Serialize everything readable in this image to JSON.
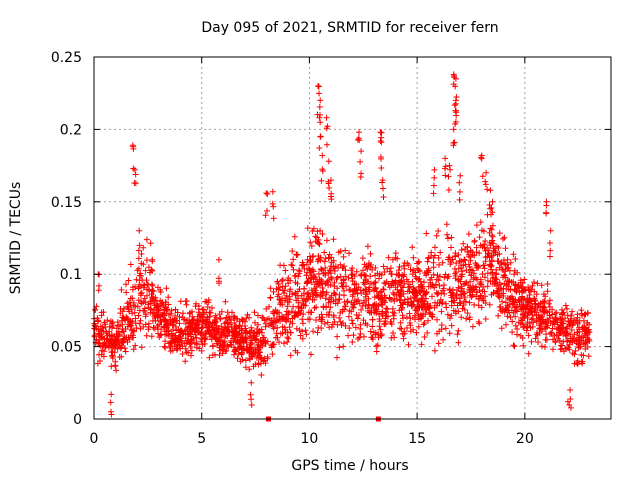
{
  "chart_data": {
    "type": "scatter",
    "title": "Day 095 of 2021, SRMTID for receiver fern",
    "xlabel": "GPS time / hours",
    "ylabel": "SRMTID / TECUs",
    "xlim": [
      0,
      24
    ],
    "ylim": [
      0,
      0.25
    ],
    "xticks": [
      0,
      5,
      10,
      15,
      20
    ],
    "yticks": [
      0,
      0.05,
      0.1,
      0.15,
      0.2,
      0.25
    ],
    "xtick_labels": [
      "0",
      "5",
      "10",
      "15",
      "20"
    ],
    "ytick_labels": [
      "0",
      "0.05",
      "0.1",
      "0.15",
      "0.2",
      "0.25"
    ],
    "grid": true,
    "marker": "plus",
    "color": "#ff0000",
    "x_range_of_data": [
      0,
      23
    ],
    "baseline_markers": [
      {
        "x": 8.1,
        "y": 0
      },
      {
        "x": 13.2,
        "y": 0
      }
    ],
    "envelope": {
      "hours": [
        0,
        0.5,
        1,
        1.5,
        2,
        2.5,
        3,
        4,
        5,
        6,
        7,
        7.8,
        8.5,
        9,
        10,
        10.5,
        11,
        12,
        13,
        14,
        15,
        16,
        17,
        18,
        18.5,
        19,
        20,
        21,
        22,
        23
      ],
      "median": [
        0.06,
        0.055,
        0.05,
        0.07,
        0.08,
        0.09,
        0.07,
        0.06,
        0.065,
        0.06,
        0.055,
        0.05,
        0.075,
        0.08,
        0.09,
        0.1,
        0.085,
        0.08,
        0.08,
        0.085,
        0.085,
        0.09,
        0.09,
        0.1,
        0.11,
        0.09,
        0.075,
        0.07,
        0.06,
        0.055
      ],
      "spread": [
        0.02,
        0.02,
        0.02,
        0.03,
        0.035,
        0.035,
        0.025,
        0.02,
        0.02,
        0.02,
        0.02,
        0.02,
        0.03,
        0.035,
        0.04,
        0.045,
        0.04,
        0.035,
        0.035,
        0.035,
        0.035,
        0.04,
        0.04,
        0.04,
        0.04,
        0.035,
        0.03,
        0.025,
        0.02,
        0.02
      ]
    },
    "peaks": [
      {
        "x": 0.2,
        "y": 0.1
      },
      {
        "x": 1.8,
        "y": 0.189
      },
      {
        "x": 1.9,
        "y": 0.172
      },
      {
        "x": 2.1,
        "y": 0.13
      },
      {
        "x": 2.7,
        "y": 0.11
      },
      {
        "x": 5.8,
        "y": 0.11
      },
      {
        "x": 8.0,
        "y": 0.156
      },
      {
        "x": 8.3,
        "y": 0.157
      },
      {
        "x": 10.4,
        "y": 0.23
      },
      {
        "x": 10.5,
        "y": 0.22
      },
      {
        "x": 10.5,
        "y": 0.205
      },
      {
        "x": 10.6,
        "y": 0.182
      },
      {
        "x": 10.8,
        "y": 0.208
      },
      {
        "x": 10.9,
        "y": 0.178
      },
      {
        "x": 11.0,
        "y": 0.165
      },
      {
        "x": 12.3,
        "y": 0.198
      },
      {
        "x": 12.4,
        "y": 0.185
      },
      {
        "x": 13.3,
        "y": 0.198
      },
      {
        "x": 13.3,
        "y": 0.192
      },
      {
        "x": 13.4,
        "y": 0.165
      },
      {
        "x": 15.8,
        "y": 0.172
      },
      {
        "x": 16.3,
        "y": 0.18
      },
      {
        "x": 16.7,
        "y": 0.238
      },
      {
        "x": 16.8,
        "y": 0.235
      },
      {
        "x": 16.8,
        "y": 0.22
      },
      {
        "x": 16.8,
        "y": 0.213
      },
      {
        "x": 16.7,
        "y": 0.2
      },
      {
        "x": 16.5,
        "y": 0.175
      },
      {
        "x": 17.0,
        "y": 0.168
      },
      {
        "x": 18.0,
        "y": 0.182
      },
      {
        "x": 18.2,
        "y": 0.17
      },
      {
        "x": 18.4,
        "y": 0.158
      },
      {
        "x": 18.5,
        "y": 0.15
      },
      {
        "x": 21.0,
        "y": 0.15
      },
      {
        "x": 21.2,
        "y": 0.13
      },
      {
        "x": 22.0,
        "y": 0.012
      },
      {
        "x": 22.1,
        "y": 0.02
      },
      {
        "x": 0.8,
        "y": 0.017
      },
      {
        "x": 7.3,
        "y": 0.025
      }
    ]
  }
}
